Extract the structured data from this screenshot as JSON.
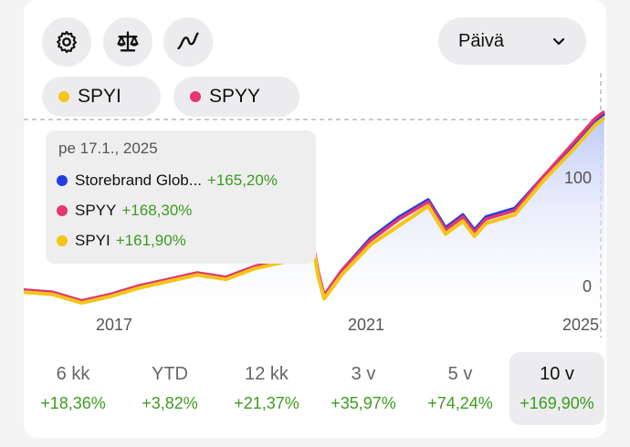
{
  "toolbar": {
    "settings_icon": "gear-icon",
    "compare_icon": "scale-icon",
    "chart_type_icon": "squiggle-line-icon",
    "period_select_value": "Päivä"
  },
  "legend": [
    {
      "label": "SPYI",
      "color": "#f5c518"
    },
    {
      "label": "SPYY",
      "color": "#e6356f"
    }
  ],
  "tooltip": {
    "date": "pe 17.1., 2025",
    "rows": [
      {
        "name": "Storebrand Glob...",
        "value": "+165,20%",
        "color": "#1f3fe0"
      },
      {
        "name": "SPYY",
        "value": "+168,30%",
        "color": "#e6356f"
      },
      {
        "name": "SPYI",
        "value": "+161,90%",
        "color": "#f5c518"
      }
    ]
  },
  "chart_data": {
    "type": "line",
    "x_tick_labels": [
      "2017",
      "2021",
      "2025"
    ],
    "y_tick_labels": [
      "0",
      "100"
    ],
    "ylim": [
      -15,
      180
    ],
    "x": [
      2015.0,
      2015.5,
      2016.0,
      2016.5,
      2017.0,
      2017.5,
      2018.0,
      2018.5,
      2019.0,
      2019.5,
      2020.0,
      2020.1,
      2020.2,
      2020.5,
      2021.0,
      2021.5,
      2022.0,
      2022.3,
      2022.6,
      2022.8,
      2023.0,
      2023.5,
      2024.0,
      2024.5,
      2024.9,
      2025.05
    ],
    "series": [
      {
        "name": "Storebrand Glob...",
        "color": "#1f3fe0",
        "values": [
          2,
          0,
          -8,
          -2,
          6,
          12,
          18,
          14,
          24,
          30,
          46,
          18,
          -3,
          20,
          50,
          70,
          86,
          60,
          72,
          58,
          70,
          78,
          108,
          136,
          160,
          166
        ]
      },
      {
        "name": "SPYY",
        "color": "#e6356f",
        "values": [
          2,
          0,
          -8,
          -2,
          6,
          12,
          18,
          14,
          24,
          30,
          46,
          18,
          -3,
          20,
          48,
          68,
          84,
          58,
          70,
          56,
          68,
          76,
          108,
          138,
          162,
          168
        ]
      },
      {
        "name": "SPYI",
        "color": "#f5c518",
        "values": [
          0,
          -2,
          -10,
          -4,
          4,
          10,
          16,
          12,
          22,
          28,
          44,
          14,
          -6,
          16,
          44,
          62,
          80,
          54,
          66,
          52,
          64,
          72,
          104,
          132,
          156,
          162
        ]
      }
    ]
  },
  "periods": [
    {
      "label": "6 kk",
      "value": "+18,36%",
      "active": false
    },
    {
      "label": "YTD",
      "value": "+3,82%",
      "active": false
    },
    {
      "label": "12 kk",
      "value": "+21,37%",
      "active": false
    },
    {
      "label": "3 v",
      "value": "+35,97%",
      "active": false
    },
    {
      "label": "5 v",
      "value": "+74,24%",
      "active": false
    },
    {
      "label": "10 v",
      "value": "+169,90%",
      "active": true
    }
  ]
}
